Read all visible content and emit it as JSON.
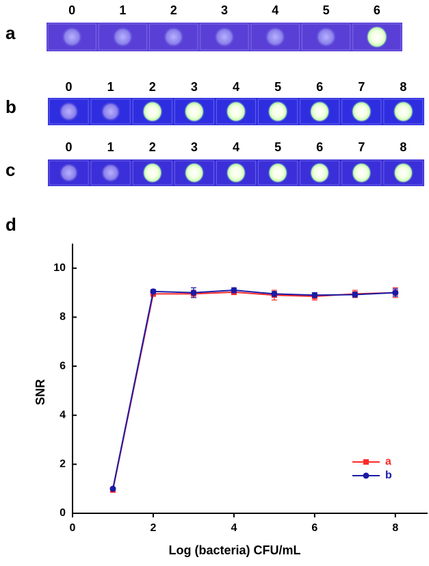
{
  "panels": [
    {
      "label": "a",
      "samples": [
        "0",
        "1",
        "2",
        "3",
        "4",
        "5",
        "6"
      ]
    },
    {
      "label": "b",
      "samples": [
        "0",
        "1",
        "2",
        "3",
        "4",
        "5",
        "6",
        "7",
        "8"
      ]
    },
    {
      "label": "c",
      "samples": [
        "0",
        "1",
        "2",
        "3",
        "4",
        "5",
        "6",
        "7",
        "8"
      ]
    }
  ],
  "chart_data": {
    "type": "line",
    "panel_label": "d",
    "x_label": "Log (bacteria) CFU/mL",
    "y_label": "SNR",
    "x": [
      1,
      2,
      3,
      4,
      5,
      6,
      7,
      8
    ],
    "series": [
      {
        "name": "a",
        "color": "#ff2a2a",
        "marker": "square",
        "values": [
          0.95,
          8.95,
          8.95,
          9.02,
          8.9,
          8.85,
          8.95,
          9.0
        ],
        "errors": [
          0.05,
          0.1,
          0.15,
          0.1,
          0.2,
          0.15,
          0.15,
          0.2
        ]
      },
      {
        "name": "b",
        "color": "#1a1aa6",
        "marker": "circle",
        "values": [
          1.0,
          9.05,
          9.0,
          9.1,
          8.95,
          8.9,
          8.92,
          9.0
        ],
        "errors": [
          0.05,
          0.08,
          0.2,
          0.1,
          0.1,
          0.1,
          0.1,
          0.15
        ]
      }
    ],
    "xlim": [
      0,
      8.8
    ],
    "ylim": [
      0,
      11
    ],
    "xticks": [
      0,
      2,
      4,
      6,
      8
    ],
    "yticks": [
      0,
      2,
      4,
      6,
      8,
      10
    ],
    "legend": "lower right"
  }
}
